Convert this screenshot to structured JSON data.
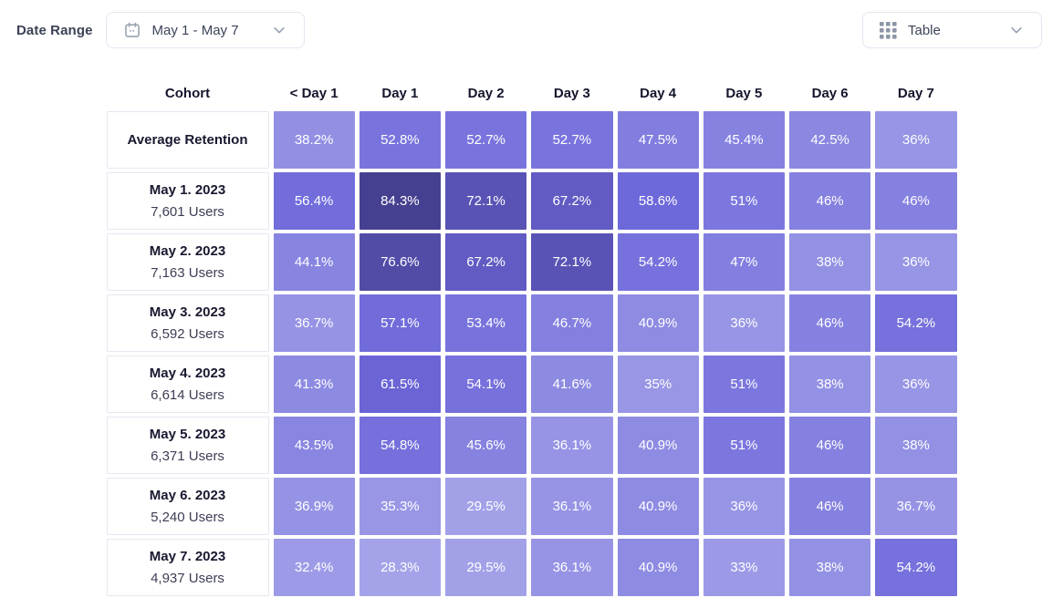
{
  "toolbar": {
    "date_range_label": "Date Range",
    "date_range_value": "May 1 - May 7",
    "view_value": "Table"
  },
  "chart_data": {
    "type": "heatmap",
    "cohort_header": "Cohort",
    "columns": [
      "< Day 1",
      "Day 1",
      "Day 2",
      "Day 3",
      "Day 4",
      "Day 5",
      "Day 6",
      "Day 7"
    ],
    "rows": [
      {
        "label": "Average Retention",
        "values": [
          "38.2%",
          "52.8%",
          "52.7%",
          "52.7%",
          "47.5%",
          "45.4%",
          "42.5%",
          "36%"
        ]
      },
      {
        "label": "May 1. 2023",
        "users": "7,601 Users",
        "values": [
          "56.4%",
          "84.3%",
          "72.1%",
          "67.2%",
          "58.6%",
          "51%",
          "46%",
          "46%"
        ]
      },
      {
        "label": "May 2. 2023",
        "users": "7,163 Users",
        "values": [
          "44.1%",
          "76.6%",
          "67.2%",
          "72.1%",
          "54.2%",
          "47%",
          "38%",
          "36%"
        ]
      },
      {
        "label": "May 3. 2023",
        "users": "6,592 Users",
        "values": [
          "36.7%",
          "57.1%",
          "53.4%",
          "46.7%",
          "40.9%",
          "36%",
          "46%",
          "54.2%"
        ]
      },
      {
        "label": "May 4. 2023",
        "users": "6,614 Users",
        "values": [
          "41.3%",
          "61.5%",
          "54.1%",
          "41.6%",
          "35%",
          "51%",
          "38%",
          "36%"
        ]
      },
      {
        "label": "May 5. 2023",
        "users": "6,371 Users",
        "values": [
          "43.5%",
          "54.8%",
          "45.6%",
          "36.1%",
          "40.9%",
          "51%",
          "46%",
          "38%"
        ]
      },
      {
        "label": "May 6. 2023",
        "users": "5,240 Users",
        "values": [
          "36.9%",
          "35.3%",
          "29.5%",
          "36.1%",
          "40.9%",
          "36%",
          "46%",
          "36.7%"
        ]
      },
      {
        "label": "May 7. 2023",
        "users": "4,937 Users",
        "values": [
          "32.4%",
          "28.3%",
          "29.5%",
          "36.1%",
          "40.9%",
          "33%",
          "38%",
          "54.2%"
        ]
      }
    ],
    "color_scale": {
      "anchors": [
        {
          "value": 28,
          "color": "#A5A4E9"
        },
        {
          "value": 60,
          "color": "#6C66D9"
        },
        {
          "value": 85,
          "color": "#453F8E"
        }
      ],
      "text_color": "#FFFFFF"
    }
  }
}
